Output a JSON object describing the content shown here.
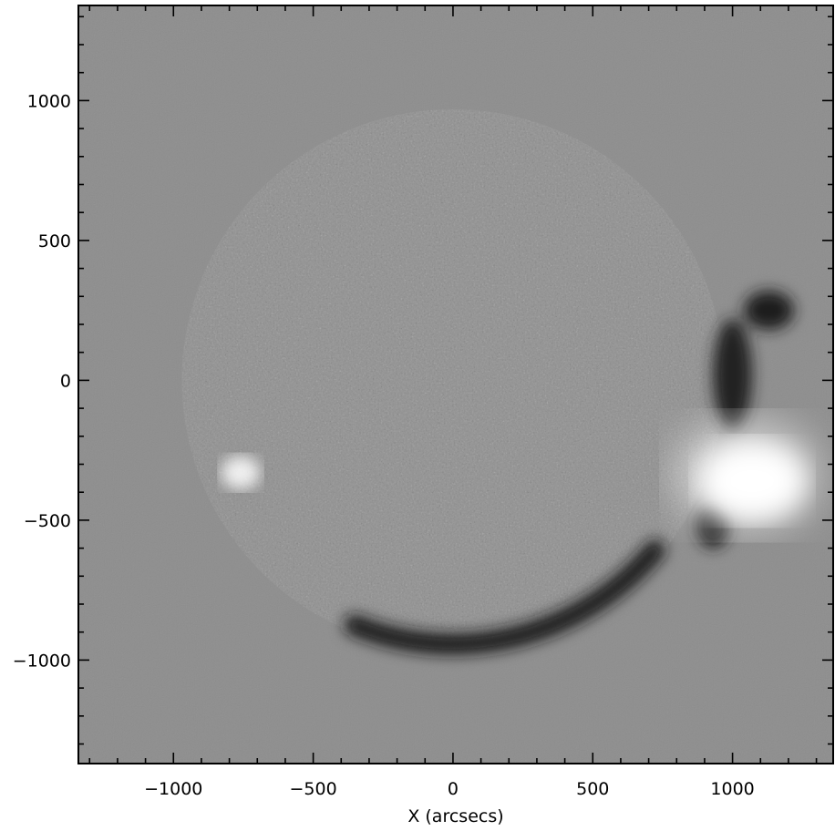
{
  "image": {
    "type": "solar running-difference image (EUV)",
    "colormap": "grayscale",
    "background_color": "#8d8d8d"
  },
  "axes": {
    "xlabel": "X (arcsecs)",
    "ylabel": "",
    "xlim": [
      -1340,
      1360
    ],
    "ylim": [
      -1370,
      1340
    ],
    "x_ticks": [
      -1000,
      -500,
      0,
      500,
      1000
    ],
    "y_ticks": [
      -1000,
      -500,
      0,
      500,
      1000
    ],
    "x_tick_labels": [
      "−1000",
      "−500",
      "0",
      "500",
      "1000"
    ],
    "y_tick_labels": [
      "−1000",
      "−500",
      "0",
      "500",
      "1000"
    ],
    "minor_tick_step": 100
  },
  "features": {
    "solar_disk_radius_arcsec": 970,
    "flare_region_center_arcsec": [
      1050,
      -340
    ]
  }
}
